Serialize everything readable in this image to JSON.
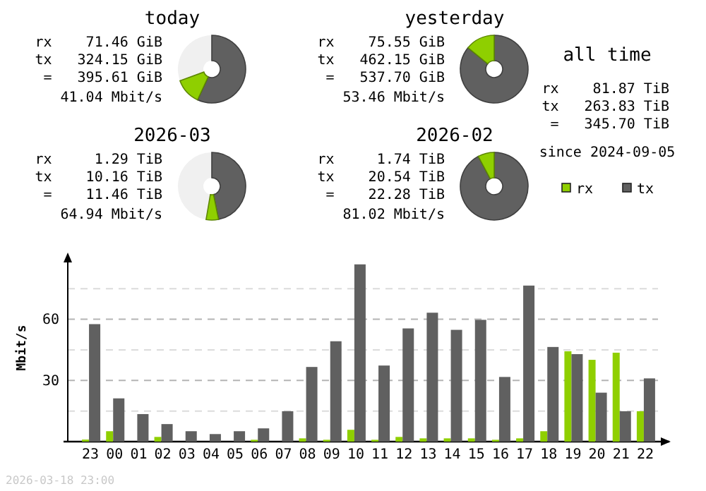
{
  "chart_data": [
    {
      "type": "donut",
      "title": "today",
      "categories": [
        null,
        null,
        null
      ],
      "values": [
        12.5,
        56.9,
        30.6
      ],
      "colors": [
        "#8fcf00",
        "#606060",
        "#f0f0f0"
      ],
      "annotations": [
        "rx    71.46 GiB",
        "tx   324.15 GiB",
        " =   395.61 GiB",
        "41.04 Mbit/s"
      ]
    },
    {
      "type": "donut",
      "title": "yesterday",
      "categories": [
        null,
        null
      ],
      "values": [
        14.1,
        85.9
      ],
      "colors": [
        "#8fcf00",
        "#606060"
      ],
      "annotations": [
        "rx    75.55 GiB",
        "tx   462.15 GiB",
        " =   537.70 GiB",
        "53.46 Mbit/s"
      ]
    },
    {
      "type": "donut",
      "title": "2026-03",
      "categories": [
        null,
        null,
        null
      ],
      "values": [
        5.9,
        46.8,
        47.3
      ],
      "colors": [
        "#8fcf00",
        "#606060",
        "#f0f0f0"
      ],
      "annotations": [
        "rx     1.29 TiB",
        "tx    10.16 TiB",
        " =    11.46 TiB",
        "64.94 Mbit/s"
      ]
    },
    {
      "type": "donut",
      "title": "2026-02",
      "categories": [
        null,
        null
      ],
      "values": [
        7.8,
        92.2
      ],
      "colors": [
        "#8fcf00",
        "#606060"
      ],
      "annotations": [
        "rx     1.74 TiB",
        "tx    20.54 TiB",
        " =    22.28 TiB",
        "81.02 Mbit/s"
      ]
    },
    {
      "type": "other",
      "title": "all time",
      "annotations": [
        "rx    81.87 TiB",
        "tx   263.83 TiB",
        "=   345.70 TiB",
        "since 2024-09-05"
      ]
    },
    {
      "type": "bar",
      "ylabel": "Mbit/s",
      "categories": [
        "23",
        "00",
        "01",
        "02",
        "03",
        "04",
        "05",
        "06",
        "07",
        "08",
        "09",
        "10",
        "11",
        "12",
        "13",
        "14",
        "15",
        "16",
        "17",
        "18",
        "19",
        "20",
        "21",
        "22"
      ],
      "series": [
        {
          "name": "rx",
          "color": "#8fcf00",
          "values": [
            1,
            5.1,
            0,
            2.3,
            0,
            0,
            0,
            0.9,
            0,
            1.6,
            0.9,
            5.8,
            0.9,
            2.3,
            1.6,
            1.6,
            1.6,
            0.9,
            1.6,
            5.1,
            44.3,
            40.1,
            43.6,
            14.9
          ]
        },
        {
          "name": "tx",
          "color": "#606060",
          "values": [
            57.6,
            21.2,
            13.5,
            8.6,
            5.1,
            3.7,
            5.1,
            6.5,
            14.9,
            36.6,
            49.2,
            86.9,
            37.3,
            55.5,
            63.2,
            54.8,
            59.7,
            31.7,
            76.5,
            46.4,
            42.9,
            24.0,
            14.9,
            31.0
          ]
        }
      ],
      "ylim": [
        0,
        92
      ],
      "yticks": [
        {
          "value": 15,
          "label": null
        },
        30,
        {
          "value": 45,
          "label": null
        },
        60,
        {
          "value": 75,
          "label": null
        }
      ],
      "grid": "y",
      "legend": "top right",
      "annotations": [
        "2026-03-18 23:00"
      ]
    }
  ]
}
